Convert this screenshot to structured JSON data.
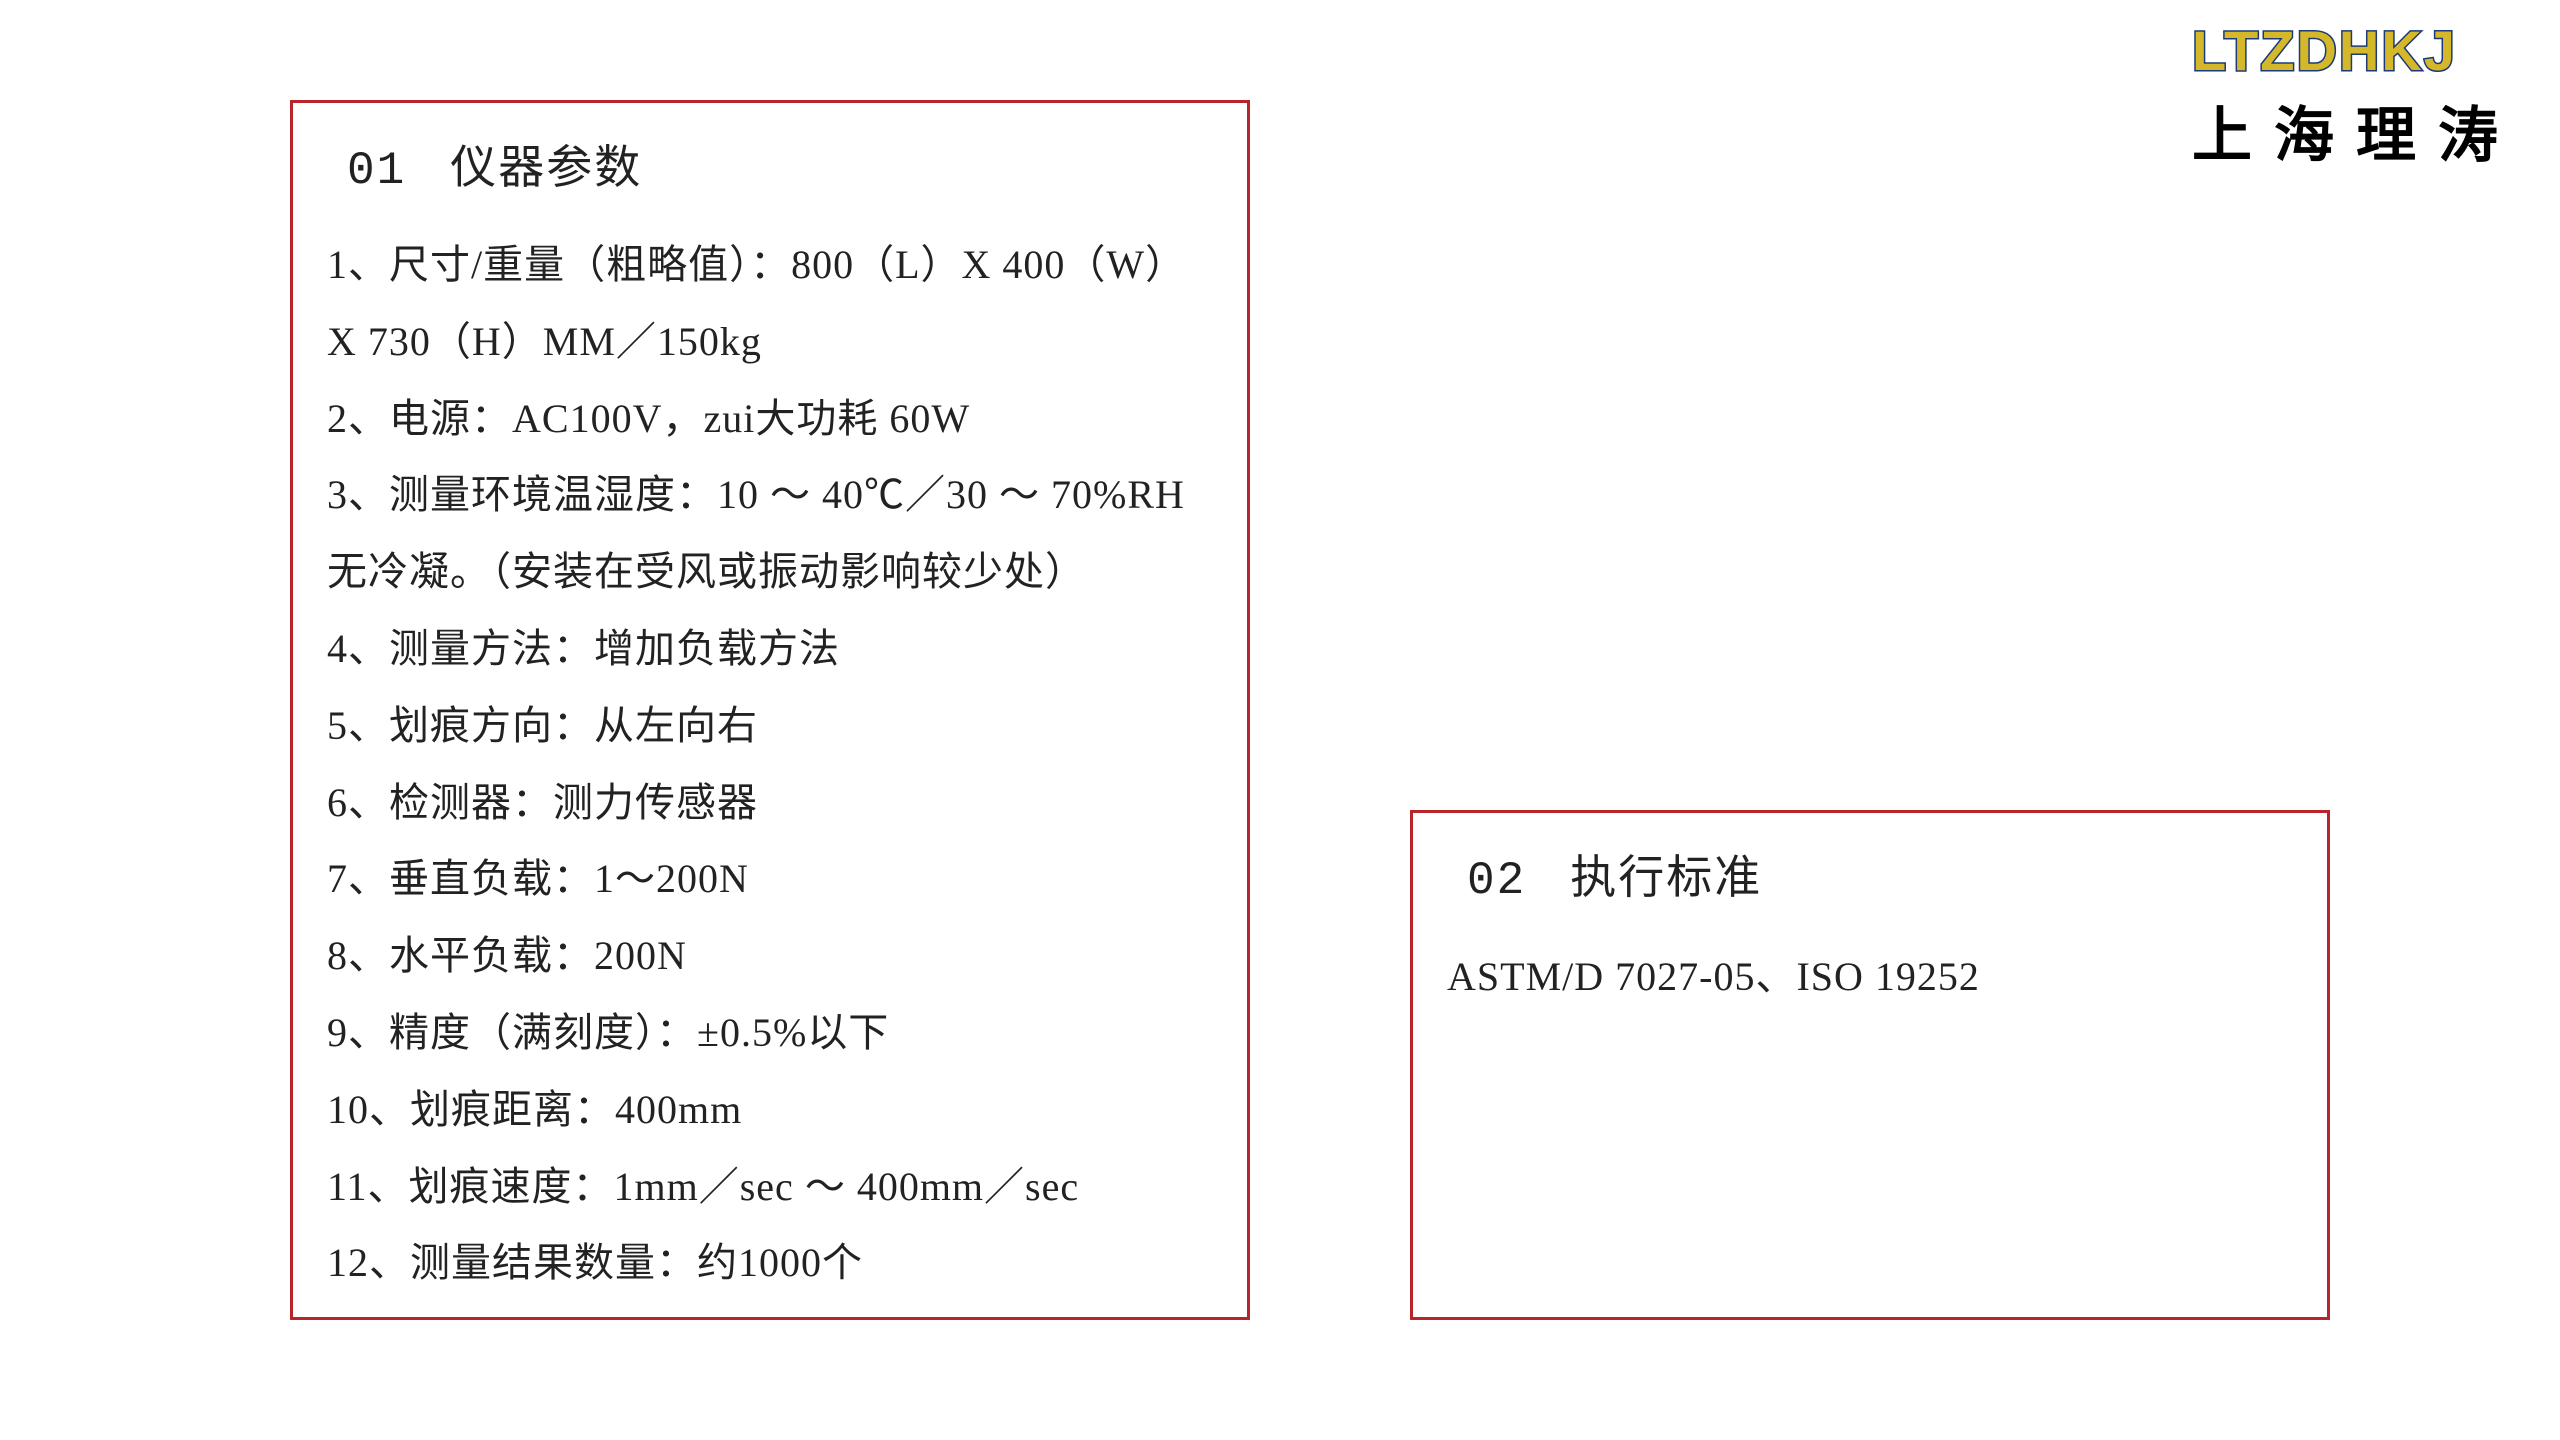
{
  "logo": {
    "text": "LTZDHKJ",
    "subtitle": "上海理涛",
    "logo_color": "#d4b82a",
    "logo_stroke": "#1a3a7a",
    "sub_color": "#000000"
  },
  "box1": {
    "title_num": "01",
    "title_text": "仪器参数",
    "border_color": "#b8242a",
    "lines": [
      "1、尺寸/重量（粗略值）：800（L）X 400（W）",
      "X 730（H）MM／150kg",
      "2、电源：AC100V，zui大功耗 60W",
      "3、测量环境温湿度：10 ～ 40℃／30 ～ 70%RH",
      "无冷凝。（安装在受风或振动影响较少处）",
      "4、测量方法：增加负载方法",
      "5、划痕方向：从左向右",
      "6、检测器：测力传感器",
      "7、垂直负载：1～200N",
      "8、水平负载：200N",
      "9、精度（满刻度）：±0.5%以下",
      "10、划痕距离：400mm",
      "11、划痕速度：1mm／sec ～ 400mm／sec",
      "12、测量结果数量：约1000个"
    ]
  },
  "box2": {
    "title_num": "02",
    "title_text": "执行标准",
    "border_color": "#b8242a",
    "lines": [
      "ASTM/D 7027-05、ISO 19252"
    ]
  },
  "style": {
    "background": "#ffffff",
    "title_fontsize": 46,
    "body_fontsize": 40,
    "text_color": "#222222"
  }
}
